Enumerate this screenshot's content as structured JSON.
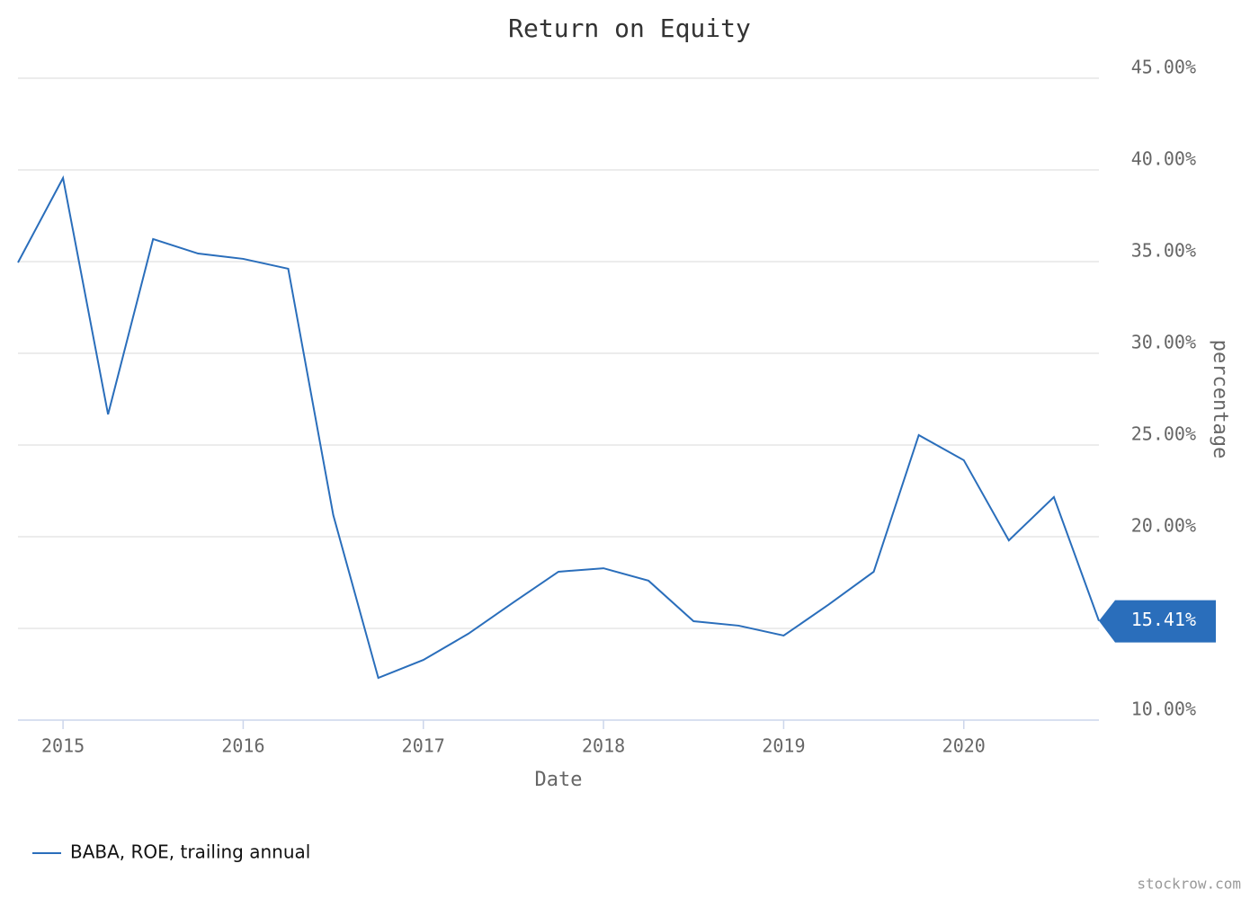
{
  "chart_data": {
    "type": "line",
    "title": "Return on Equity",
    "x_label": "Date",
    "y_label": "percentage",
    "x": [
      2014.75,
      2015,
      2015.25,
      2015.5,
      2015.75,
      2016,
      2016.25,
      2016.5,
      2016.75,
      2017,
      2017.25,
      2017.5,
      2017.75,
      2018,
      2018.25,
      2018.5,
      2018.75,
      2019,
      2019.25,
      2019.5,
      2019.75,
      2020,
      2020.25,
      2020.5,
      2020.75
    ],
    "series": [
      {
        "name": "BABA, ROE, trailing annual",
        "color": "#2a6ebb",
        "values": [
          34.95,
          39.56,
          26.67,
          36.23,
          35.44,
          35.15,
          34.61,
          21.18,
          12.3,
          13.28,
          14.71,
          16.42,
          18.09,
          18.28,
          17.6,
          15.39,
          15.15,
          14.61,
          16.3,
          18.09,
          25.54,
          24.17,
          19.8,
          22.16,
          15.41
        ],
        "value_labels": [
          null,
          null,
          null,
          null,
          null,
          null,
          null,
          null,
          null,
          null,
          null,
          null,
          null,
          null,
          null,
          null,
          null,
          null,
          null,
          null,
          null,
          null,
          null,
          null,
          "15.41%"
        ]
      }
    ],
    "xlim": [
      2014.75,
      2020.75
    ],
    "xticks": [
      2015,
      2016,
      2017,
      2018,
      2019,
      2020
    ],
    "ylim": [
      10,
      45
    ],
    "yticks": [
      {
        "value": 10,
        "label": "10.00%"
      },
      {
        "value": 15,
        "label": "15.00%"
      },
      {
        "value": 20,
        "label": "20.00%"
      },
      {
        "value": 25,
        "label": "25.00%"
      },
      {
        "value": 30,
        "label": "30.00%"
      },
      {
        "value": 35,
        "label": "35.00%"
      },
      {
        "value": 40,
        "label": "40.00%"
      },
      {
        "value": 45,
        "label": "45.00%"
      }
    ],
    "grid": true,
    "legend": "bottom-left",
    "credit": "stockrow.com"
  }
}
